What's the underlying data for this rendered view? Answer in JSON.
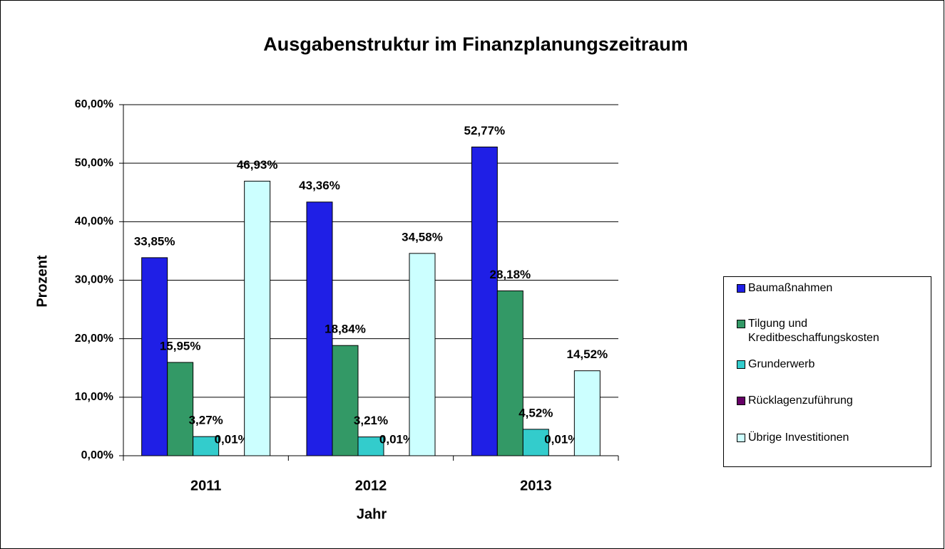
{
  "chart_data": {
    "type": "bar",
    "title": "Ausgabenstruktur im Finanzplanungszeitraum",
    "xlabel": "Jahr",
    "ylabel": "Prozent",
    "categories": [
      "2011",
      "2012",
      "2013"
    ],
    "series": [
      {
        "name": "Baumaßnahmen",
        "color": "#1f1fe6",
        "values": [
          33.85,
          43.36,
          52.77
        ],
        "value_labels": [
          "33,85%",
          "43,36%",
          "52,77%"
        ]
      },
      {
        "name": "Tilgung und Kreditbeschaffungskosten",
        "color": "#339966",
        "values": [
          15.95,
          18.84,
          28.18
        ],
        "value_labels": [
          "15,95%",
          "18,84%",
          "28,18%"
        ]
      },
      {
        "name": "Grunderwerb",
        "color": "#33cccc",
        "values": [
          3.27,
          3.21,
          4.52
        ],
        "value_labels": [
          "3,27%",
          "3,21%",
          "4,52%"
        ]
      },
      {
        "name": "Rücklagenzuführung",
        "color": "#660066",
        "values": [
          0.01,
          0.01,
          0.01
        ],
        "value_labels": [
          "0,01%",
          "0,01%",
          "0,01%"
        ]
      },
      {
        "name": "Übrige Investitionen",
        "color": "#ccffff",
        "values": [
          46.93,
          34.58,
          14.52
        ],
        "value_labels": [
          "46,93%",
          "34,58%",
          "14,52%"
        ]
      }
    ],
    "ylim": [
      0,
      60
    ],
    "yticks": [
      {
        "value": 0,
        "label": "0,00%"
      },
      {
        "value": 10,
        "label": "10,00%"
      },
      {
        "value": 20,
        "label": "20,00%"
      },
      {
        "value": 30,
        "label": "30,00%"
      },
      {
        "value": 40,
        "label": "40,00%"
      },
      {
        "value": 50,
        "label": "50,00%"
      },
      {
        "value": 60,
        "label": "60,00%"
      }
    ],
    "grid": true,
    "legend": "right"
  }
}
